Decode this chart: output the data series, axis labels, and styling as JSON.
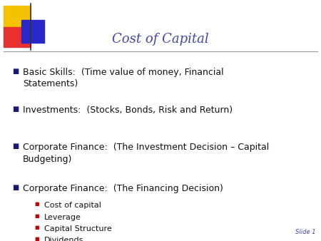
{
  "title": "Cost of Capital",
  "title_color": "#4444aa",
  "title_fontsize": 13,
  "background_color": "#ffffff",
  "slide_label": "Slide 1",
  "slide_label_color": "#4444aa",
  "slide_label_fontsize": 6,
  "bullet_color": "#1a1a70",
  "sub_bullet_color": "#cc0000",
  "line_color": "#999999",
  "main_items": [
    "Basic Skills:  (Time value of money, Financial\nStatements)",
    "Investments:  (Stocks, Bonds, Risk and Return)",
    "Corporate Finance:  (The Investment Decision – Capital\nBudgeting)",
    "Corporate Finance:  (The Financing Decision)"
  ],
  "sub_items": [
    "Cost of capital",
    "Leverage",
    "Capital Structure",
    "Dividends"
  ],
  "main_fontsize": 9.0,
  "sub_fontsize": 8.0,
  "logo_yellow": "#f5c200",
  "logo_red": "#e83030",
  "logo_blue": "#2828c8",
  "logo_line_color": "#333333"
}
